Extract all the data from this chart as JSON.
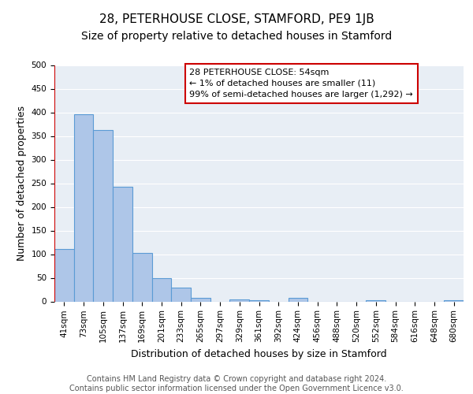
{
  "title": "28, PETERHOUSE CLOSE, STAMFORD, PE9 1JB",
  "subtitle": "Size of property relative to detached houses in Stamford",
  "xlabel": "Distribution of detached houses by size in Stamford",
  "ylabel": "Number of detached properties",
  "bar_values": [
    111,
    396,
    362,
    243,
    103,
    50,
    30,
    8,
    0,
    5,
    3,
    0,
    7,
    0,
    0,
    0,
    2,
    0,
    0,
    0,
    2
  ],
  "bar_labels": [
    "41sqm",
    "73sqm",
    "105sqm",
    "137sqm",
    "169sqm",
    "201sqm",
    "233sqm",
    "265sqm",
    "297sqm",
    "329sqm",
    "361sqm",
    "392sqm",
    "424sqm",
    "456sqm",
    "488sqm",
    "520sqm",
    "552sqm",
    "584sqm",
    "616sqm",
    "648sqm",
    "680sqm"
  ],
  "ylim": [
    0,
    500
  ],
  "yticks": [
    0,
    50,
    100,
    150,
    200,
    250,
    300,
    350,
    400,
    450,
    500
  ],
  "bar_color": "#aec6e8",
  "bar_edge_color": "#5b9bd5",
  "bg_color": "#e8eef5",
  "grid_color": "#ffffff",
  "annotation_line1": "28 PETERHOUSE CLOSE: 54sqm",
  "annotation_line2": "← 1% of detached houses are smaller (11)",
  "annotation_line3": "99% of semi-detached houses are larger (1,292) →",
  "annotation_box_color": "#ffffff",
  "annotation_box_edge_color": "#cc0000",
  "vline_color": "#cc0000",
  "footer_text": "Contains HM Land Registry data © Crown copyright and database right 2024.\nContains public sector information licensed under the Open Government Licence v3.0.",
  "title_fontsize": 11,
  "subtitle_fontsize": 10,
  "xlabel_fontsize": 9,
  "ylabel_fontsize": 9,
  "tick_fontsize": 7.5,
  "footer_fontsize": 7
}
